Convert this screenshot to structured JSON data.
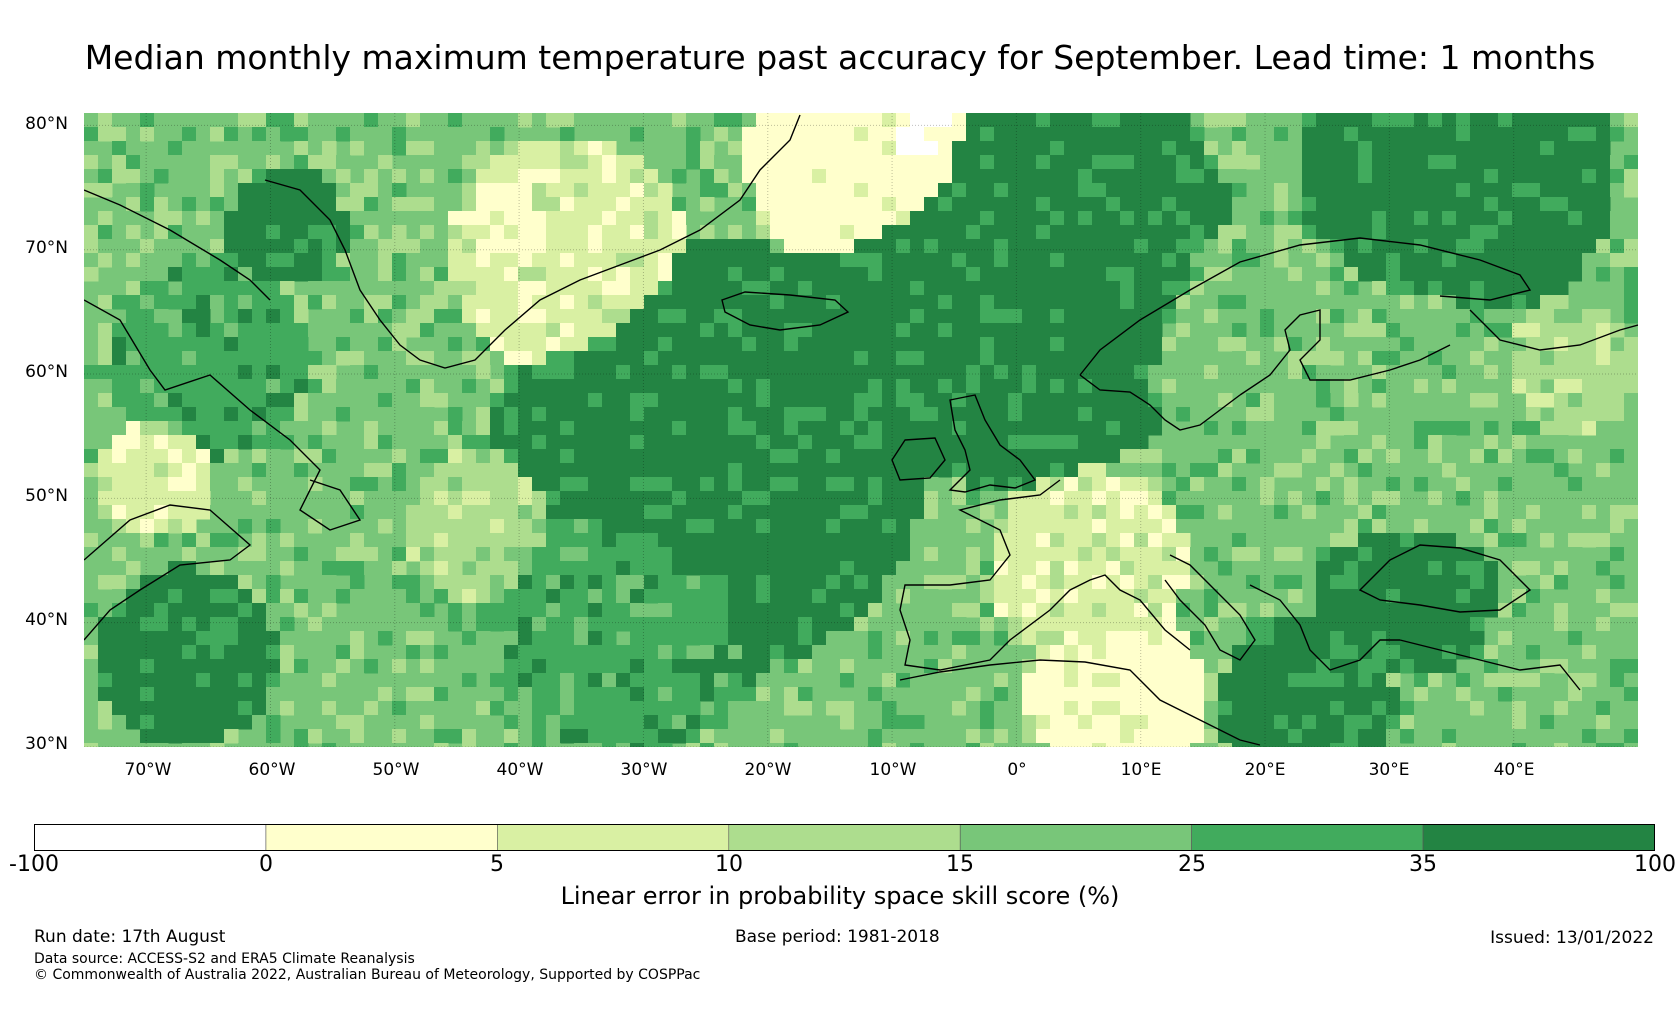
{
  "title": "Median monthly maximum temperature past accuracy for September. Lead time: 1 months",
  "map": {
    "latitude_labels": [
      "80°N",
      "70°N",
      "60°N",
      "50°N",
      "40°N",
      "30°N"
    ],
    "longitude_labels": [
      "70°W",
      "60°W",
      "50°W",
      "40°W",
      "30°W",
      "20°W",
      "10°W",
      "0°",
      "10°E",
      "20°E",
      "30°E",
      "40°E"
    ],
    "lat_range": [
      30,
      81
    ],
    "lon_range": [
      -75,
      50
    ],
    "gridlines": true,
    "coastlines": true
  },
  "colorbar": {
    "label": "Linear error in probability space skill score (%)",
    "ticks": [
      "-100",
      "0",
      "5",
      "10",
      "15",
      "25",
      "35",
      "100"
    ],
    "colors": [
      "#ffffff",
      "#ffffcc",
      "#d9f0a3",
      "#addd8e",
      "#78c679",
      "#41ab5d",
      "#238443"
    ]
  },
  "footer": {
    "run_date": "Run date: 17th August",
    "base_period": "Base period: 1981-2018",
    "issued": "Issued: 13/01/2022",
    "data_source": "Data source: ACCESS-S2 and ERA5 Climate Reanalysis",
    "copyright": "© Commonwealth of Australia 2022, Australian Bureau of Meteorology, Supported by COSPPac"
  }
}
